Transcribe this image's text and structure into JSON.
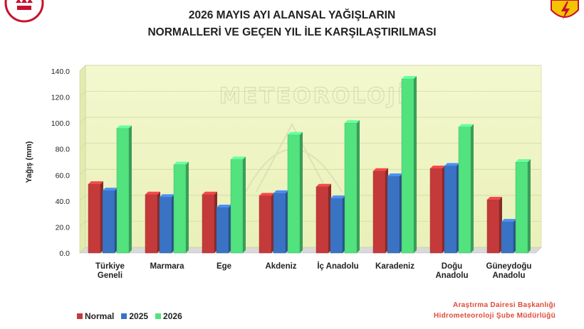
{
  "header": {
    "title_line1": "2026 MAYIS AYI ALANSAL YAĞIŞLARIN",
    "title_line2": "NORMALLERİ VE GEÇEN YIL İLE KARŞILAŞTIRILMASI"
  },
  "watermark": "METEOROLOJİ",
  "footer": {
    "credit_line1": "Araştırma Dairesi Başkanlığı",
    "credit_line2": "Hidrometeoroloji Şube Müdürlüğü"
  },
  "chart_data": {
    "type": "bar",
    "title": "2026 MAYIS AYI ALANSAL YAĞIŞLARIN NORMALLERİ VE GEÇEN YIL İLE KARŞILAŞTIRILMASI",
    "xlabel": "",
    "ylabel": "Yağış (mm)",
    "ylim": [
      0,
      140
    ],
    "yticks": [
      "0.0",
      "20.0",
      "40.0",
      "60.0",
      "80.0",
      "100.0",
      "120.0",
      "140.0"
    ],
    "grid": true,
    "legend_position": "bottom-left",
    "categories": [
      [
        "Türkiye",
        "Geneli"
      ],
      [
        "Marmara"
      ],
      [
        "Ege"
      ],
      [
        "Akdeniz"
      ],
      [
        "İç Anadolu"
      ],
      [
        "Karadeniz"
      ],
      [
        "Doğu",
        "Anadolu"
      ],
      [
        "Güneydoğu",
        "Anadolu"
      ]
    ],
    "series": [
      {
        "name": "Normal",
        "color": "#c43a3a",
        "values": [
          53,
          45,
          45,
          44,
          51,
          63,
          65,
          41
        ]
      },
      {
        "name": "2025",
        "color": "#3b73c4",
        "values": [
          48,
          43,
          35,
          46,
          42,
          59,
          67,
          24
        ]
      },
      {
        "name": "2026",
        "color": "#52e27e",
        "values": [
          96,
          68,
          72,
          91,
          100,
          134,
          97,
          70
        ]
      }
    ]
  }
}
